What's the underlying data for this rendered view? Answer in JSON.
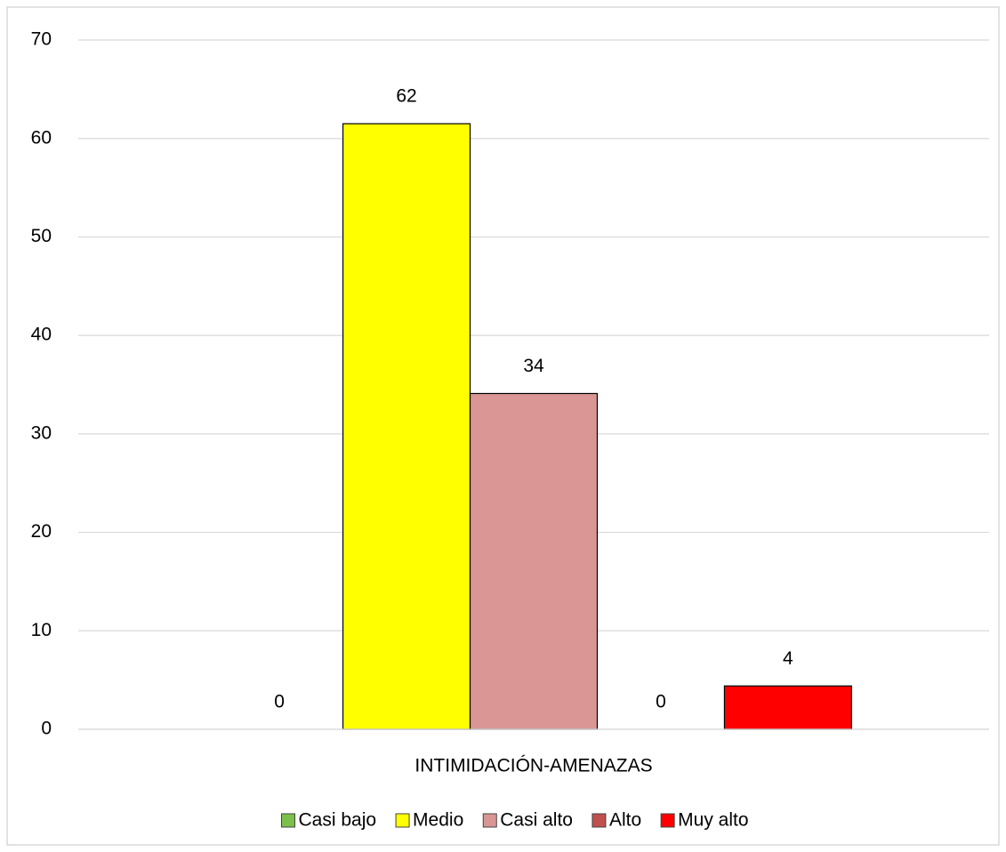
{
  "chart_data": {
    "type": "bar",
    "categories": [
      "INTIMIDACIÓN-AMENAZAS"
    ],
    "series": [
      {
        "name": "Casi bajo",
        "color": "#7cc04b",
        "values": [
          0
        ],
        "value_labels": [
          "0"
        ]
      },
      {
        "name": "Medio",
        "color": "#ffff00",
        "values": [
          61.5
        ],
        "value_labels": [
          "62"
        ]
      },
      {
        "name": "Casi alto",
        "color": "#d99694",
        "values": [
          34.1
        ],
        "value_labels": [
          "34"
        ]
      },
      {
        "name": "Alto",
        "color": "#c0504d",
        "values": [
          0
        ],
        "value_labels": [
          "0"
        ]
      },
      {
        "name": "Muy alto",
        "color": "#ff0000",
        "values": [
          4.4
        ],
        "value_labels": [
          "4"
        ]
      }
    ],
    "ylim": [
      0,
      70
    ],
    "yticks": [
      0,
      10,
      20,
      30,
      40,
      50,
      60,
      70
    ],
    "grid": true,
    "legend": "bottom"
  }
}
